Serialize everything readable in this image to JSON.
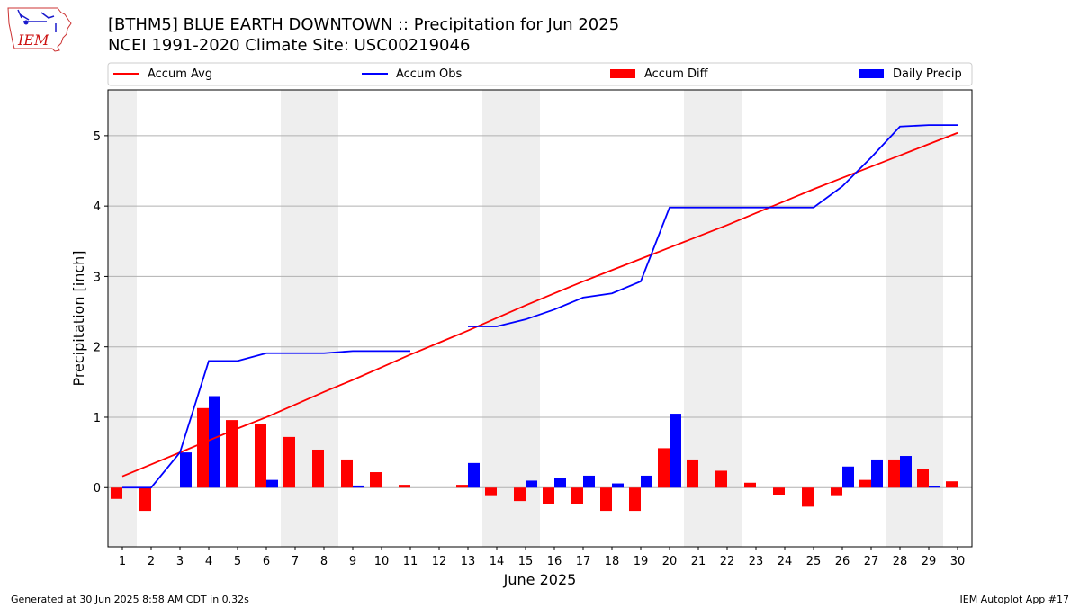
{
  "header": {
    "title": "[BTHM5] BLUE EARTH DOWNTOWN :: Precipitation for Jun 2025",
    "subtitle": "NCEI 1991-2020 Climate Site: USC00219046",
    "logo_text": "IEM"
  },
  "footer": {
    "left": "Generated at 30 Jun 2025 8:58 AM CDT in 0.32s",
    "right": "IEM Autoplot App #17"
  },
  "chart_data": {
    "type": "bar",
    "xlabel": "June 2025",
    "ylabel": "Precipitation [inch]",
    "xlim": [
      0.5,
      30.5
    ],
    "ylim": [
      -0.84,
      5.65
    ],
    "x": [
      1,
      2,
      3,
      4,
      5,
      6,
      7,
      8,
      9,
      10,
      11,
      12,
      13,
      14,
      15,
      16,
      17,
      18,
      19,
      20,
      21,
      22,
      23,
      24,
      25,
      26,
      27,
      28,
      29,
      30
    ],
    "x_tick_labels": [
      "1",
      "2",
      "3",
      "4",
      "5",
      "6",
      "7",
      "8",
      "9",
      "10",
      "11",
      "12",
      "13",
      "14",
      "15",
      "16",
      "17",
      "18",
      "19",
      "20",
      "21",
      "22",
      "23",
      "24",
      "25",
      "26",
      "27",
      "28",
      "29",
      "30"
    ],
    "y_ticks": [
      0,
      1,
      2,
      3,
      4,
      5
    ],
    "y_tick_labels": [
      "0",
      "1",
      "2",
      "3",
      "4",
      "5"
    ],
    "grid": "horizontal",
    "legend_placement": "top",
    "weekend_shading": [
      [
        0.5,
        1.5
      ],
      [
        6.5,
        8.5
      ],
      [
        13.5,
        15.5
      ],
      [
        20.5,
        22.5
      ],
      [
        27.5,
        29.5
      ]
    ],
    "series": [
      {
        "name": "Accum Avg",
        "kind": "line",
        "color": "#ff0000",
        "values": [
          0.16,
          0.33,
          0.5,
          0.67,
          0.84,
          1.0,
          1.18,
          1.36,
          1.53,
          1.71,
          1.89,
          2.06,
          2.23,
          2.41,
          2.59,
          2.76,
          2.93,
          3.09,
          3.25,
          3.41,
          3.57,
          3.73,
          3.9,
          4.07,
          4.24,
          4.4,
          4.56,
          4.72,
          4.88,
          5.04
        ]
      },
      {
        "name": "Accum Obs",
        "kind": "line",
        "color": "#0000ff",
        "values": [
          0.0,
          0.0,
          0.5,
          1.8,
          1.8,
          1.91,
          1.91,
          1.91,
          1.94,
          1.94,
          1.94,
          null,
          2.29,
          2.29,
          2.39,
          2.53,
          2.7,
          2.76,
          2.93,
          3.98,
          3.98,
          3.98,
          3.98,
          3.98,
          3.98,
          4.28,
          4.69,
          5.13,
          5.15,
          5.15
        ]
      },
      {
        "name": "Accum Diff",
        "kind": "bar",
        "color": "#ff0000",
        "values": [
          -0.16,
          -0.33,
          0.0,
          1.13,
          0.96,
          0.91,
          0.72,
          0.54,
          0.4,
          0.22,
          0.04,
          null,
          0.04,
          -0.12,
          -0.19,
          -0.23,
          -0.23,
          -0.33,
          -0.33,
          0.56,
          0.4,
          0.24,
          0.07,
          -0.1,
          -0.27,
          -0.12,
          0.11,
          0.4,
          0.26,
          0.09
        ]
      },
      {
        "name": "Daily Precip",
        "kind": "bar",
        "color": "#0000ff",
        "values": [
          0.0,
          0.0,
          0.5,
          1.3,
          0.0,
          0.11,
          0.0,
          0.0,
          0.03,
          0.0,
          0.0,
          null,
          0.35,
          0.0,
          0.1,
          0.14,
          0.17,
          0.06,
          0.17,
          1.05,
          0.0,
          0.0,
          0.0,
          0.0,
          0.0,
          0.3,
          0.4,
          0.45,
          0.02,
          0.0
        ]
      }
    ]
  }
}
